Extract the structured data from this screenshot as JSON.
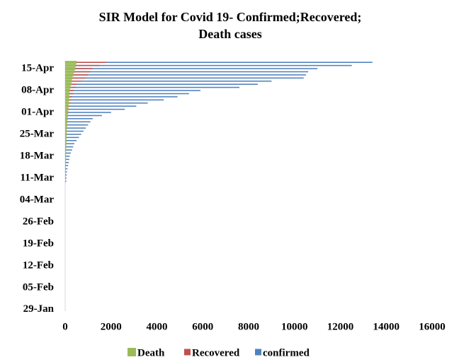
{
  "chart_data": {
    "type": "bar",
    "orientation": "horizontal",
    "title": "SIR Model for Covid 19- Confirmed;Recovered;",
    "subtitle": "Death cases",
    "categories": [
      "29-Jan",
      null,
      null,
      null,
      null,
      null,
      null,
      "05-Feb",
      null,
      null,
      null,
      null,
      null,
      null,
      "12-Feb",
      null,
      null,
      null,
      null,
      null,
      null,
      "19-Feb",
      null,
      null,
      null,
      null,
      null,
      null,
      "26-Feb",
      null,
      null,
      null,
      null,
      null,
      null,
      "04-Mar",
      null,
      null,
      null,
      null,
      null,
      null,
      "11-Mar",
      null,
      null,
      null,
      null,
      null,
      null,
      "18-Mar",
      null,
      null,
      null,
      null,
      null,
      null,
      "25-Mar",
      null,
      null,
      null,
      null,
      null,
      null,
      "01-Apr",
      null,
      null,
      null,
      null,
      null,
      null,
      "08-Apr",
      null,
      null,
      null,
      null,
      null,
      null,
      "15-Apr",
      null,
      null
    ],
    "series": [
      {
        "name": "Death",
        "color": "#9bbb59",
        "values": [
          0,
          0,
          0,
          0,
          0,
          0,
          0,
          0,
          0,
          0,
          0,
          0,
          0,
          0,
          0,
          0,
          0,
          0,
          0,
          0,
          0,
          0,
          0,
          0,
          0,
          0,
          0,
          0,
          0,
          0,
          0,
          0,
          0,
          0,
          0,
          0,
          0,
          0,
          0,
          0,
          0,
          20,
          20,
          25,
          25,
          30,
          30,
          35,
          35,
          40,
          40,
          45,
          50,
          55,
          60,
          65,
          70,
          75,
          80,
          90,
          100,
          110,
          120,
          130,
          140,
          150,
          160,
          170,
          180,
          190,
          200,
          230,
          260,
          290,
          320,
          360,
          400,
          440,
          470,
          500
        ]
      },
      {
        "name": "Recovered",
        "color": "#c0504d",
        "values": [
          0,
          0,
          0,
          0,
          0,
          0,
          0,
          0,
          0,
          0,
          0,
          0,
          0,
          0,
          0,
          0,
          0,
          0,
          0,
          0,
          0,
          0,
          0,
          0,
          0,
          0,
          0,
          0,
          0,
          0,
          0,
          0,
          0,
          0,
          0,
          0,
          0,
          0,
          0,
          0,
          0,
          0,
          0,
          0,
          0,
          0,
          0,
          0,
          0,
          0,
          0,
          10,
          10,
          20,
          20,
          30,
          40,
          50,
          60,
          70,
          80,
          100,
          120,
          150,
          180,
          200,
          230,
          260,
          300,
          340,
          380,
          450,
          500,
          700,
          900,
          1000,
          1100,
          1200,
          1500,
          1800
        ]
      },
      {
        "name": "confirmed",
        "color": "#4f81bd",
        "values": [
          0,
          0,
          0,
          0,
          0,
          0,
          0,
          0,
          0,
          0,
          0,
          0,
          0,
          0,
          0,
          0,
          0,
          0,
          0,
          0,
          0,
          0,
          0,
          0,
          0,
          0,
          0,
          0,
          0,
          0,
          0,
          0,
          0,
          0,
          0,
          0,
          0,
          0,
          0,
          0,
          0,
          50,
          60,
          70,
          80,
          100,
          130,
          160,
          180,
          200,
          250,
          300,
          350,
          400,
          500,
          600,
          700,
          800,
          900,
          1000,
          1100,
          1200,
          1600,
          2000,
          2600,
          3100,
          3600,
          4300,
          4900,
          5400,
          5900,
          7600,
          8400,
          9000,
          10400,
          10500,
          10600,
          11000,
          12500,
          13400
        ]
      }
    ],
    "xlim": [
      0,
      16000
    ],
    "xticks": [
      0,
      2000,
      4000,
      6000,
      8000,
      10000,
      12000,
      14000,
      16000
    ],
    "grid": false,
    "legend": "bottom"
  }
}
